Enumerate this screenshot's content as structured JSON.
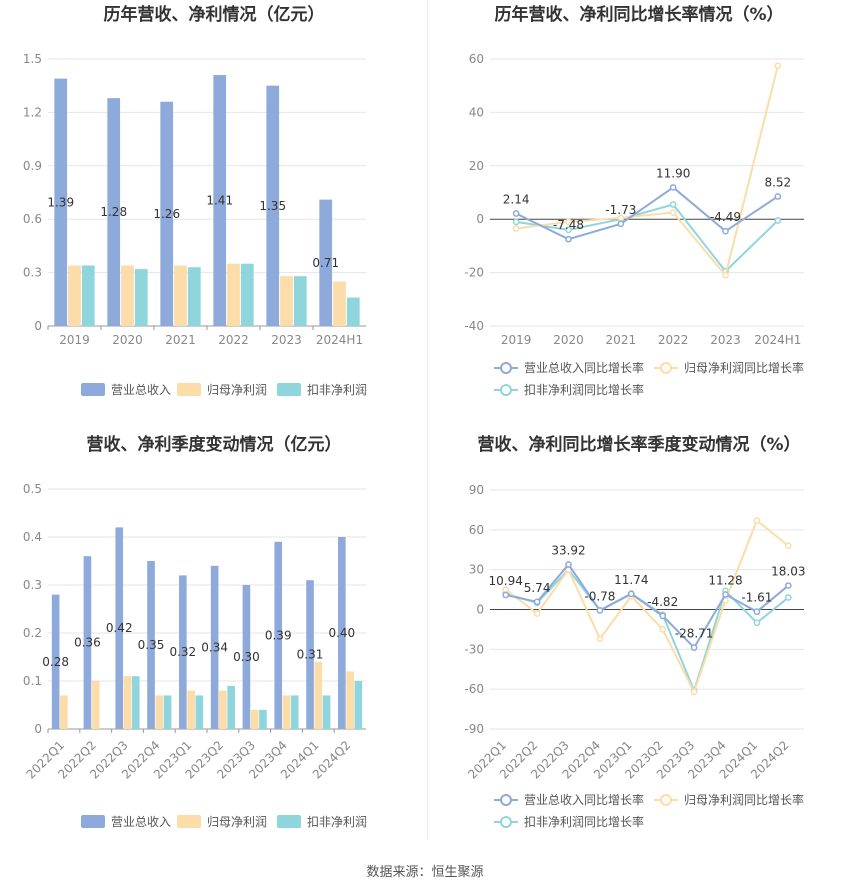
{
  "chart_data": [
    {
      "type": "bar",
      "title": "历年营收、净利情况（亿元）",
      "categories": [
        "2019",
        "2020",
        "2021",
        "2022",
        "2023",
        "2024H1"
      ],
      "series": [
        {
          "name": "营业总收入",
          "values": [
            1.39,
            1.28,
            1.26,
            1.41,
            1.35,
            0.71
          ],
          "color": "#8eaadb"
        },
        {
          "name": "归母净利润",
          "values": [
            0.34,
            0.34,
            0.34,
            0.35,
            0.28,
            0.25
          ],
          "color": "#fcdca8"
        },
        {
          "name": "扣非净利润",
          "values": [
            0.34,
            0.32,
            0.33,
            0.35,
            0.28,
            0.16
          ],
          "color": "#8ed6db"
        }
      ],
      "data_labels": [
        "1.39",
        "1.28",
        "1.26",
        "1.41",
        "1.35",
        "0.71"
      ],
      "y_ticks": [
        "0",
        "0.3",
        "0.6",
        "0.9",
        "1.2",
        "1.5"
      ],
      "ylim": [
        0,
        1.5
      ],
      "legend": "bottom",
      "grid": true
    },
    {
      "type": "line",
      "title": "历年营收、净利同比增长率情况（%）",
      "categories": [
        "2019",
        "2020",
        "2021",
        "2022",
        "2023",
        "2024H1"
      ],
      "series": [
        {
          "name": "营业总收入同比增长率",
          "values": [
            2.14,
            -7.48,
            -1.73,
            11.9,
            -4.49,
            8.52
          ],
          "color": "#8eaadb"
        },
        {
          "name": "归母净利润同比增长率",
          "values": [
            -3.5,
            -1.0,
            0.5,
            2.5,
            -21.0,
            57.5
          ],
          "color": "#fcdca8"
        },
        {
          "name": "扣非净利润同比增长率",
          "values": [
            -1.0,
            -4.0,
            0.0,
            5.5,
            -19.5,
            -0.5
          ],
          "color": "#8ed6db"
        }
      ],
      "data_labels": [
        "2.14",
        "-7.48",
        "-1.73",
        "11.90",
        "-4.49",
        "8.52"
      ],
      "y_ticks": [
        "-40",
        "-20",
        "0",
        "20",
        "40",
        "60"
      ],
      "ylim": [
        -40,
        60
      ],
      "legend": "bottom",
      "grid": true
    },
    {
      "type": "bar",
      "title": "营收、净利季度变动情况（亿元）",
      "categories": [
        "2022Q1",
        "2022Q2",
        "2022Q3",
        "2022Q4",
        "2023Q1",
        "2023Q2",
        "2023Q3",
        "2023Q4",
        "2024Q1",
        "2024Q2"
      ],
      "series": [
        {
          "name": "营业总收入",
          "values": [
            0.28,
            0.36,
            0.42,
            0.35,
            0.32,
            0.34,
            0.3,
            0.39,
            0.31,
            0.4
          ],
          "color": "#8eaadb"
        },
        {
          "name": "归母净利润",
          "values": [
            0.07,
            0.1,
            0.11,
            0.07,
            0.08,
            0.08,
            0.04,
            0.07,
            0.14,
            0.12
          ],
          "color": "#fcdca8"
        },
        {
          "name": "扣非净利润",
          "values": [
            0.0,
            0.0,
            0.11,
            0.07,
            0.07,
            0.09,
            0.04,
            0.07,
            0.07,
            0.1
          ],
          "color": "#8ed6db"
        }
      ],
      "data_labels": [
        "0.28",
        "0.36",
        "0.42",
        "0.35",
        "0.32",
        "0.34",
        "0.30",
        "0.39",
        "0.31",
        "0.40"
      ],
      "y_ticks": [
        "0",
        "0.1",
        "0.2",
        "0.3",
        "0.4",
        "0.5"
      ],
      "ylim": [
        0,
        0.5
      ],
      "legend": "bottom",
      "grid": true
    },
    {
      "type": "line",
      "title": "营收、净利同比增长率季度变动情况（%）",
      "categories": [
        "2022Q1",
        "2022Q2",
        "2022Q3",
        "2022Q4",
        "2023Q1",
        "2023Q2",
        "2023Q3",
        "2023Q4",
        "2024Q1",
        "2024Q2"
      ],
      "series": [
        {
          "name": "营业总收入同比增长率",
          "values": [
            10.94,
            5.74,
            33.92,
            -0.78,
            11.74,
            -4.82,
            -28.71,
            11.28,
            -1.61,
            18.03
          ],
          "color": "#8eaadb"
        },
        {
          "name": "归母净利润同比增长率",
          "values": [
            15.0,
            -3.0,
            30.0,
            -22.0,
            10.0,
            -15.0,
            -62.0,
            7.0,
            67.0,
            48.0
          ],
          "color": "#fcdca8"
        },
        {
          "name": "扣非净利润同比增长率",
          "values": [
            12.0,
            5.0,
            30.0,
            -0.5,
            12.0,
            -4.0,
            -61.0,
            14.0,
            -10.0,
            9.0
          ],
          "color": "#8ed6db"
        }
      ],
      "data_labels": [
        "10.94",
        "5.74",
        "33.92",
        "-0.78",
        "11.74",
        "-4.82",
        "-28.71",
        "11.28",
        "-1.61",
        "18.03"
      ],
      "y_ticks": [
        "-90",
        "-60",
        "-30",
        "0",
        "30",
        "60",
        "90"
      ],
      "ylim": [
        -90,
        90
      ],
      "legend": "bottom",
      "grid": true
    }
  ],
  "footer": {
    "source": "数据来源：恒生聚源"
  }
}
